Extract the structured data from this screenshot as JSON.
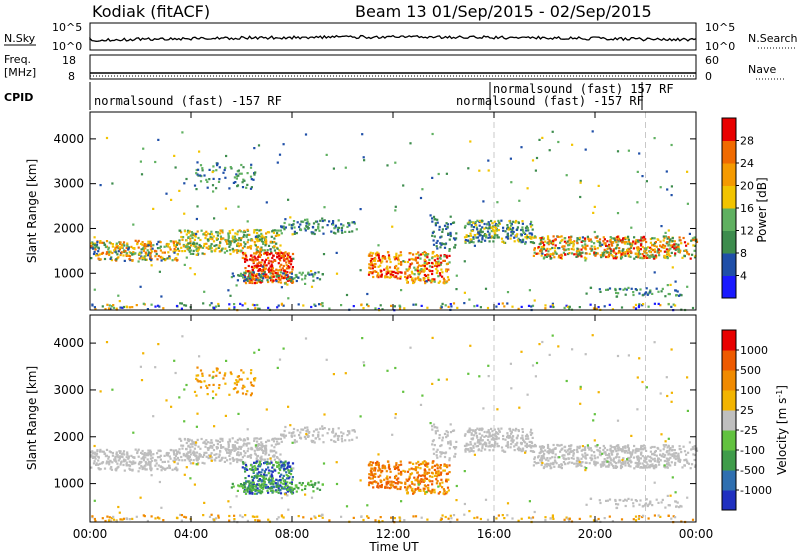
{
  "header": {
    "station": "Kodiak (fitACF)",
    "beam_title": "Beam 13  01/Sep/2015 - 02/Sep/2015"
  },
  "top_panels": {
    "nsky_label": "N.Sky",
    "nsky_ticks": [
      "10^5",
      "10^0"
    ],
    "nsearch_label": "N.Search",
    "nsearch_ticks": [
      "10^5",
      "10^0"
    ],
    "freq_label_1": "Freq.",
    "freq_label_2": "[MHz]",
    "freq_ticks": [
      "18",
      "8"
    ],
    "nave_label": "Nave",
    "nave_ticks": [
      "60",
      "0"
    ],
    "cpid_label": "CPID",
    "cpid_entries": [
      "normalsound (fast) -157 RF",
      "normalsound (fast) 157 RF",
      "normalsound (fast) -157 RF"
    ]
  },
  "colors": {
    "power": [
      "#1a1aff",
      "#1f4fa8",
      "#3d8c4d",
      "#5fb060",
      "#f2c400",
      "#f59a00",
      "#f06a00",
      "#e80000"
    ],
    "velocity": [
      "#2030c0",
      "#2f6fb0",
      "#3f9c4a",
      "#62c23f",
      "#bfbfbf",
      "#f2b400",
      "#f08a00",
      "#ee5a00",
      "#e80000"
    ],
    "ground_scatter": "#bdbdbd",
    "cpid_change_line": "#c8c8c8"
  },
  "chart_data": [
    {
      "type": "heatmap",
      "title": "Power",
      "ylabel": "Slant Range [km]",
      "ylim": [
        180,
        4600
      ],
      "yticks": [
        "1000",
        "2000",
        "3000",
        "4000"
      ],
      "colorbar_label": "Power [dB]",
      "colorbar_ticks": [
        "28",
        "24",
        "20",
        "16",
        "12",
        "8",
        "4"
      ]
    },
    {
      "type": "heatmap",
      "title": "Velocity",
      "ylabel": "Slant Range [km]",
      "ylim": [
        180,
        4600
      ],
      "yticks": [
        "1000",
        "2000",
        "3000",
        "4000"
      ],
      "colorbar_label": "Velocity [m s",
      "colorbar_label_sup": "-1",
      "colorbar_label_end": "]",
      "colorbar_ticks": [
        "1000",
        "500",
        "100",
        "25",
        "-25",
        "-100",
        "-500",
        "-1000"
      ],
      "xlabel": "Time UT",
      "xticks": [
        "00:00",
        "04:00",
        "08:00",
        "12:00",
        "16:00",
        "20:00",
        "00:00"
      ],
      "xlim_hours": [
        0,
        24
      ],
      "cpid_change_hours": [
        16,
        22
      ]
    }
  ]
}
